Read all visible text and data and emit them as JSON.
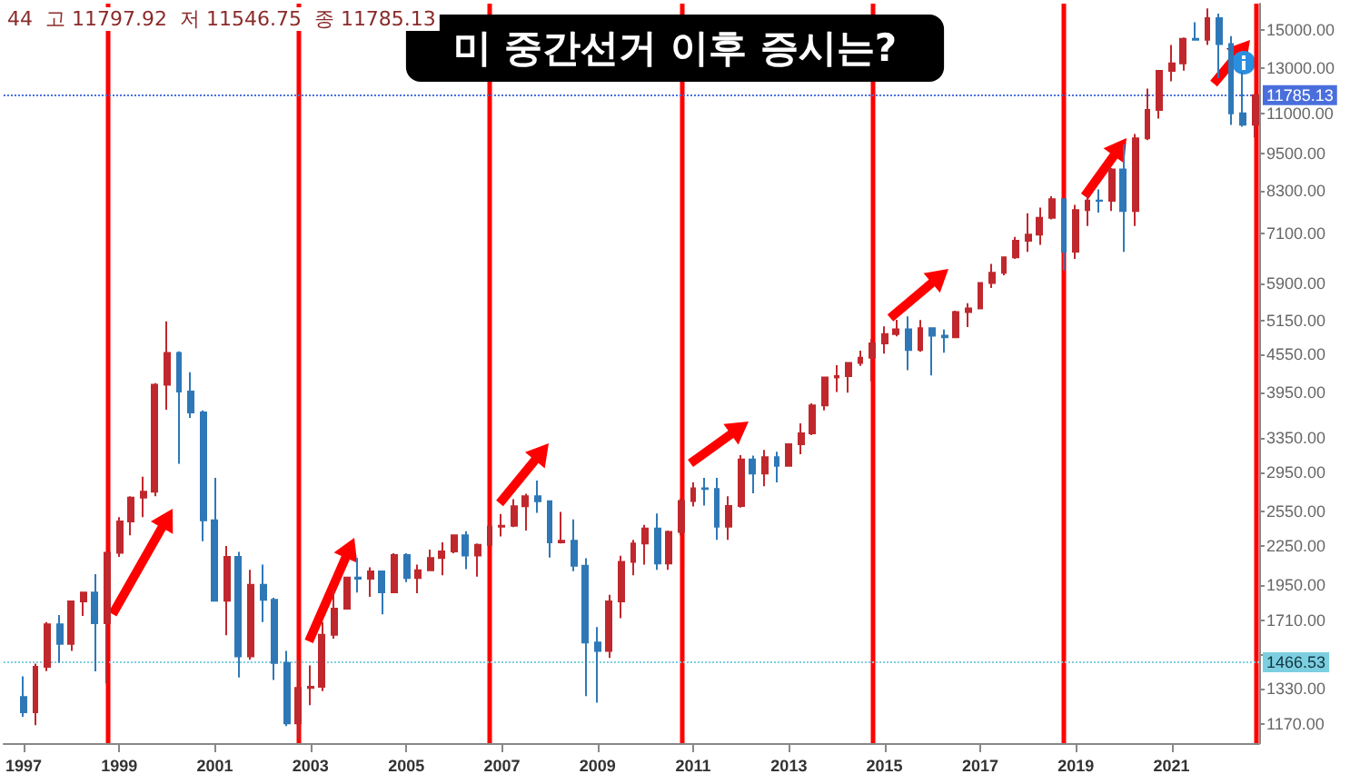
{
  "chart_data": {
    "type": "candlestick",
    "title": "미 중간선거 이후 증시는?",
    "annotations": [
      "44",
      "고 11797.92",
      "저 11546.75",
      "종 11785.13"
    ],
    "colors": [
      "#2f78b7",
      "#c0282d",
      "#c0282d",
      "#2f78b7",
      "#c0282d",
      "#c0282d",
      "#2f78b7",
      "#c0282d",
      "#c0282d",
      "#c0282d",
      "#c0282d",
      "#c0282d",
      "#c0282d",
      "#2f78b7",
      "#2f78b7",
      "#2f78b7",
      "#2f78b7",
      "#c0282d",
      "#2f78b7",
      "#c0282d",
      "#2f78b7",
      "#2f78b7",
      "#2f78b7",
      "#c0282d",
      "#c0282d",
      "#c0282d",
      "#c0282d",
      "#c0282d",
      "#2f78b7",
      "#c0282d",
      "#2f78b7",
      "#c0282d",
      "#2f78b7",
      "#c0282d",
      "#c0282d",
      "#c0282d",
      "#c0282d",
      "#2f78b7",
      "#c0282d",
      "#c0282d",
      "#c0282d",
      "#c0282d",
      "#c0282d",
      "#2f78b7",
      "#2f78b7",
      "#c0282d",
      "#2f78b7",
      "#2f78b7",
      "#2f78b7",
      "#c0282d",
      "#c0282d",
      "#c0282d",
      "#c0282d",
      "#2f78b7",
      "#c0282d",
      "#c0282d",
      "#c0282d",
      "#2f78b7",
      "#2f78b7",
      "#c0282d",
      "#c0282d",
      "#2f78b7",
      "#c0282d",
      "#2f78b7",
      "#c0282d",
      "#c0282d",
      "#c0282d",
      "#c0282d",
      "#c0282d",
      "#c0282d",
      "#c0282d",
      "#c0282d",
      "#c0282d",
      "#c0282d",
      "#2f78b7",
      "#c0282d",
      "#2f78b7",
      "#2f78b7",
      "#c0282d",
      "#c0282d",
      "#c0282d",
      "#c0282d",
      "#c0282d",
      "#c0282d",
      "#c0282d",
      "#c0282d",
      "#c0282d",
      "#2f78b7",
      "#c0282d",
      "#c0282d",
      "#2f78b7",
      "#c0282d",
      "#2f78b7",
      "#c0282d",
      "#c0282d",
      "#c0282d",
      "#c0282d",
      "#c0282d",
      "#2f78b7",
      "#c0282d",
      "#2f78b7",
      "#2f78b7",
      "#2f78b7",
      "#c0282d"
    ],
    "x": [
      "1997-01",
      "1997-04",
      "1997-07",
      "1997-10",
      "1998-01",
      "1998-04",
      "1998-07",
      "1998-10",
      "1999-01",
      "1999-04",
      "1999-07",
      "1999-10",
      "2000-01",
      "2000-04",
      "2000-07",
      "2000-10",
      "2001-01",
      "2001-04",
      "2001-07",
      "2001-10",
      "2002-01",
      "2002-04",
      "2002-07",
      "2002-10",
      "2003-01",
      "2003-04",
      "2003-07",
      "2003-10",
      "2004-01",
      "2004-04",
      "2004-07",
      "2004-10",
      "2005-01",
      "2005-04",
      "2005-07",
      "2005-10",
      "2006-01",
      "2006-04",
      "2006-07",
      "2006-10",
      "2007-01",
      "2007-04",
      "2007-07",
      "2007-10",
      "2008-01",
      "2008-04",
      "2008-07",
      "2008-10",
      "2009-01",
      "2009-04",
      "2009-07",
      "2009-10",
      "2010-01",
      "2010-04",
      "2010-07",
      "2010-10",
      "2011-01",
      "2011-04",
      "2011-07",
      "2011-10",
      "2012-01",
      "2012-04",
      "2012-07",
      "2012-10",
      "2013-01",
      "2013-04",
      "2013-07",
      "2013-10",
      "2014-01",
      "2014-04",
      "2014-07",
      "2014-10",
      "2015-01",
      "2015-04",
      "2015-07",
      "2015-10",
      "2016-01",
      "2016-04",
      "2016-07",
      "2016-10",
      "2017-01",
      "2017-04",
      "2017-07",
      "2017-10",
      "2018-01",
      "2018-04",
      "2018-07",
      "2018-10",
      "2019-01",
      "2019-04",
      "2019-07",
      "2019-10",
      "2020-01",
      "2020-04",
      "2020-07",
      "2020-10",
      "2021-01",
      "2021-04",
      "2021-07",
      "2021-10",
      "2022-01",
      "2022-04",
      "2022-07",
      "2022-10"
    ],
    "ohlc": [
      [
        1291,
        1393,
        1201,
        1221
      ],
      [
        1221,
        1460,
        1164,
        1443
      ],
      [
        1443,
        1700,
        1420,
        1686
      ],
      [
        1686,
        1745,
        1465,
        1570
      ],
      [
        1570,
        1836,
        1530,
        1835
      ],
      [
        1835,
        1900,
        1740,
        1895
      ],
      [
        1895,
        2028,
        1419,
        1694
      ],
      [
        1694,
        2200,
        1357,
        2193
      ],
      [
        2193,
        2500,
        2160,
        2461
      ],
      [
        2461,
        2700,
        2340,
        2686
      ],
      [
        2686,
        2900,
        2500,
        2746
      ],
      [
        2746,
        4090,
        2700,
        4069
      ],
      [
        4069,
        5132,
        3711,
        4573
      ],
      [
        4573,
        4600,
        3042,
        3966
      ],
      [
        3966,
        4260,
        3600,
        3673
      ],
      [
        3673,
        3700,
        2288,
        2471
      ],
      [
        2471,
        2890,
        1840,
        1840
      ],
      [
        1840,
        2250,
        1620,
        2160
      ],
      [
        2160,
        2200,
        1387,
        1499
      ],
      [
        1499,
        2060,
        1480,
        1950
      ],
      [
        1950,
        2100,
        1700,
        1845
      ],
      [
        1845,
        1860,
        1375,
        1463
      ],
      [
        1463,
        1530,
        1160,
        1172
      ],
      [
        1172,
        1480,
        1108,
        1335
      ],
      [
        1335,
        1450,
        1253,
        1341
      ],
      [
        1341,
        1700,
        1320,
        1623
      ],
      [
        1623,
        1915,
        1600,
        1787
      ],
      [
        1787,
        2010,
        1780,
        2003
      ],
      [
        2003,
        2153,
        1896,
        1994
      ],
      [
        1994,
        2080,
        1865,
        2048
      ],
      [
        2048,
        2050,
        1750,
        1897
      ],
      [
        1897,
        2190,
        1890,
        2175
      ],
      [
        2175,
        2190,
        1970,
        1999
      ],
      [
        1999,
        2100,
        1890,
        2057
      ],
      [
        2057,
        2220,
        2050,
        2151
      ],
      [
        2151,
        2280,
        2020,
        2205
      ],
      [
        2205,
        2345,
        2190,
        2340
      ],
      [
        2340,
        2375,
        2065,
        2172
      ],
      [
        2172,
        2270,
        2010,
        2258
      ],
      [
        2258,
        2470,
        2250,
        2415
      ],
      [
        2415,
        2530,
        2330,
        2422
      ],
      [
        2422,
        2670,
        2410,
        2603
      ],
      [
        2603,
        2725,
        2380,
        2701
      ],
      [
        2701,
        2861,
        2540,
        2652
      ],
      [
        2652,
        2660,
        2155,
        2279
      ],
      [
        2279,
        2550,
        2270,
        2293
      ],
      [
        2293,
        2480,
        2050,
        2092
      ],
      [
        2092,
        2150,
        1295,
        1577
      ],
      [
        1577,
        1670,
        1265,
        1529
      ],
      [
        1529,
        1880,
        1490,
        1835
      ],
      [
        1835,
        2170,
        1725,
        2122
      ],
      [
        2122,
        2300,
        2020,
        2269
      ],
      [
        2269,
        2430,
        2100,
        2398
      ],
      [
        2398,
        2535,
        2060,
        2109
      ],
      [
        2109,
        2380,
        2060,
        2369
      ],
      [
        2369,
        2675,
        2340,
        2653
      ],
      [
        2653,
        2840,
        2600,
        2781
      ],
      [
        2781,
        2890,
        2610,
        2774
      ],
      [
        2774,
        2890,
        2300,
        2415
      ],
      [
        2415,
        2700,
        2300,
        2605
      ],
      [
        2605,
        3140,
        2590,
        3091
      ],
      [
        3091,
        3135,
        2730,
        2935
      ],
      [
        2935,
        3200,
        2800,
        3116
      ],
      [
        3116,
        3180,
        2840,
        3020
      ],
      [
        3020,
        3280,
        3015,
        3268
      ],
      [
        3268,
        3530,
        3150,
        3403
      ],
      [
        3403,
        3800,
        3380,
        3771
      ],
      [
        3771,
        4180,
        3700,
        4177
      ],
      [
        4177,
        4370,
        3960,
        4199
      ],
      [
        4199,
        4420,
        3950,
        4408
      ],
      [
        4408,
        4610,
        4360,
        4493
      ],
      [
        4493,
        4810,
        4120,
        4736
      ],
      [
        4736,
        5040,
        4560,
        4901
      ],
      [
        4901,
        5165,
        4860,
        4987
      ],
      [
        4987,
        5230,
        4290,
        4620
      ],
      [
        4620,
        5160,
        4590,
        5007
      ],
      [
        5007,
        5010,
        4210,
        4870
      ],
      [
        4870,
        4980,
        4575,
        4843
      ],
      [
        4843,
        5340,
        4840,
        5312
      ],
      [
        5312,
        5490,
        5030,
        5383
      ],
      [
        5383,
        5930,
        5370,
        5912
      ],
      [
        5912,
        6340,
        5805,
        6140
      ],
      [
        6140,
        6500,
        6080,
        6496
      ],
      [
        6496,
        7000,
        6460,
        6903
      ],
      [
        6903,
        7640,
        6630,
        7063
      ],
      [
        7063,
        7800,
        6800,
        7510
      ],
      [
        7510,
        8130,
        7470,
        8046
      ],
      [
        8046,
        8050,
        6190,
        6635
      ],
      [
        6635,
        7880,
        6460,
        7729
      ],
      [
        7729,
        8180,
        7290,
        8006
      ],
      [
        8006,
        8340,
        7660,
        7999
      ],
      [
        7999,
        9020,
        7700,
        8973
      ],
      [
        8973,
        9840,
        6630,
        7700
      ],
      [
        7700,
        10220,
        7290,
        10058
      ],
      [
        10058,
        12075,
        9990,
        11168
      ],
      [
        11168,
        12910,
        10820,
        12888
      ],
      [
        12888,
        14180,
        12400,
        13247
      ],
      [
        13247,
        14570,
        12900,
        14504
      ],
      [
        14504,
        15410,
        14440,
        14448
      ],
      [
        14448,
        16212,
        14180,
        15645
      ],
      [
        15645,
        15900,
        12550,
        14221
      ],
      [
        14221,
        14650,
        10570,
        11029
      ],
      [
        11029,
        12850,
        10500,
        10576
      ],
      [
        10576,
        11797.92,
        10090,
        11785.13
      ]
    ],
    "log": true,
    "grid": false,
    "xlim": [
      "1996-08",
      "2022-11"
    ],
    "xticks": [
      "1997",
      "1999",
      "2001",
      "2003",
      "2005",
      "2007",
      "2009",
      "2011",
      "2013",
      "2015",
      "2017",
      "2019",
      "2021"
    ],
    "ylim": [
      1090,
      16500
    ],
    "yticks": [
      {
        "value": 1170,
        "label": "1170.00"
      },
      {
        "value": 1330,
        "label": "1330.00"
      },
      {
        "value": 1510,
        "label": null
      },
      {
        "value": 1710,
        "label": "1710.00"
      },
      {
        "value": 1950,
        "label": "1950.00"
      },
      {
        "value": 2250,
        "label": "2250.00"
      },
      {
        "value": 2550,
        "label": "2550.00"
      },
      {
        "value": 2950,
        "label": "2950.00"
      },
      {
        "value": 3350,
        "label": "3350.00"
      },
      {
        "value": 3950,
        "label": "3950.00"
      },
      {
        "value": 4550,
        "label": "4550.00"
      },
      {
        "value": 5150,
        "label": "5150.00"
      },
      {
        "value": 5900,
        "label": "5900.00"
      },
      {
        "value": 7100,
        "label": "7100.00"
      },
      {
        "value": 8300,
        "label": "8300.00"
      },
      {
        "value": 9500,
        "label": "9500.00"
      },
      {
        "value": 11000,
        "label": "11000.00"
      },
      {
        "value": 13000,
        "label": "13000.00"
      },
      {
        "value": 15000,
        "label": "15000.00"
      }
    ],
    "ref_lines": [
      {
        "axis": "x",
        "value": "1998-10",
        "label": null,
        "color": "#ff0000"
      },
      {
        "axis": "x",
        "value": "2002-10",
        "label": null,
        "color": "#ff0000"
      },
      {
        "axis": "x",
        "value": "2006-10",
        "label": null,
        "color": "#ff0000"
      },
      {
        "axis": "x",
        "value": "2010-10",
        "label": null,
        "color": "#ff0000"
      },
      {
        "axis": "x",
        "value": "2014-10",
        "label": null,
        "color": "#ff0000"
      },
      {
        "axis": "x",
        "value": "2018-10",
        "label": null,
        "color": "#ff0000"
      },
      {
        "axis": "x",
        "value": "2022-10",
        "label": null,
        "color": "#ff0000"
      },
      {
        "axis": "y",
        "value": 11785.13,
        "label": "11785.13",
        "color": "#4a6fdc",
        "line_style": "dotted"
      },
      {
        "axis": "y",
        "value": 1466.53,
        "label": "1466.53",
        "color": "#7ccfe0",
        "line_style": "dotted"
      }
    ]
  }
}
